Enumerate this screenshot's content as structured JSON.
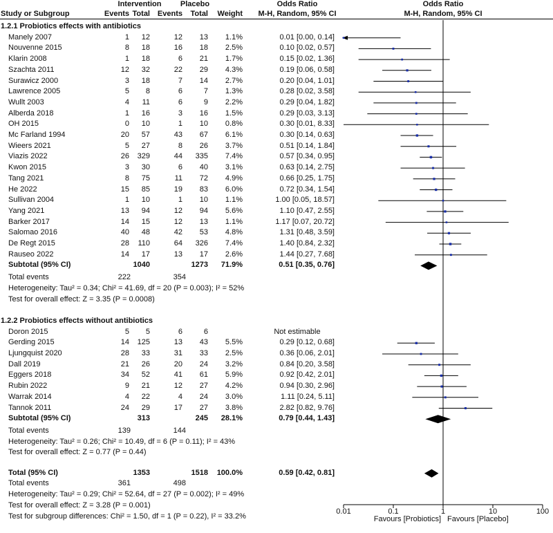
{
  "header": {
    "intervention": "Intervention",
    "placebo": "Placebo",
    "odds_ratio": "Odds Ratio",
    "odds_ratio_right": "Odds Ratio",
    "study": "Study or Subgroup",
    "events_i": "Events",
    "total_i": "Total",
    "events_p": "Events",
    "total_p": "Total",
    "weight": "Weight",
    "method": "M-H, Random, 95% CI",
    "method_right": "M-H, Random, 95% CI"
  },
  "groups": [
    {
      "title": "1.2.1 Probiotics effects with antibiotics",
      "studies": [
        {
          "name": "Manely 2007",
          "ei": "1",
          "ti": "12",
          "ep": "12",
          "tp": "13",
          "w": "1.1%",
          "ci": "0.01 [0.00, 0.14]"
        },
        {
          "name": "Nouvenne 2015",
          "ei": "8",
          "ti": "18",
          "ep": "16",
          "tp": "18",
          "w": "2.5%",
          "ci": "0.10 [0.02, 0.57]"
        },
        {
          "name": "Klarin 2008",
          "ei": "1",
          "ti": "18",
          "ep": "6",
          "tp": "21",
          "w": "1.7%",
          "ci": "0.15 [0.02, 1.36]"
        },
        {
          "name": "Szachta 2011",
          "ei": "12",
          "ti": "32",
          "ep": "22",
          "tp": "29",
          "w": "4.3%",
          "ci": "0.19 [0.06, 0.58]"
        },
        {
          "name": "Surawicz 2000",
          "ei": "3",
          "ti": "18",
          "ep": "7",
          "tp": "14",
          "w": "2.7%",
          "ci": "0.20 [0.04, 1.01]"
        },
        {
          "name": "Lawrence 2005",
          "ei": "5",
          "ti": "8",
          "ep": "6",
          "tp": "7",
          "w": "1.3%",
          "ci": "0.28 [0.02, 3.58]"
        },
        {
          "name": "Wullt 2003",
          "ei": "4",
          "ti": "11",
          "ep": "6",
          "tp": "9",
          "w": "2.2%",
          "ci": "0.29 [0.04, 1.82]"
        },
        {
          "name": "Alberda 2018",
          "ei": "1",
          "ti": "16",
          "ep": "3",
          "tp": "16",
          "w": "1.5%",
          "ci": "0.29 [0.03, 3.13]"
        },
        {
          "name": "OH 2015",
          "ei": "0",
          "ti": "10",
          "ep": "1",
          "tp": "10",
          "w": "0.8%",
          "ci": "0.30 [0.01, 8.33]"
        },
        {
          "name": "Mc Farland 1994",
          "ei": "20",
          "ti": "57",
          "ep": "43",
          "tp": "67",
          "w": "6.1%",
          "ci": "0.30 [0.14, 0.63]"
        },
        {
          "name": "Wieers 2021",
          "ei": "5",
          "ti": "27",
          "ep": "8",
          "tp": "26",
          "w": "3.7%",
          "ci": "0.51 [0.14, 1.84]"
        },
        {
          "name": "Viazis 2022",
          "ei": "26",
          "ti": "329",
          "ep": "44",
          "tp": "335",
          "w": "7.4%",
          "ci": "0.57 [0.34, 0.95]"
        },
        {
          "name": "Kwon 2015",
          "ei": "3",
          "ti": "30",
          "ep": "6",
          "tp": "40",
          "w": "3.1%",
          "ci": "0.63 [0.14, 2.75]"
        },
        {
          "name": "Tang 2021",
          "ei": "8",
          "ti": "75",
          "ep": "11",
          "tp": "72",
          "w": "4.9%",
          "ci": "0.66 [0.25, 1.75]"
        },
        {
          "name": "He 2022",
          "ei": "15",
          "ti": "85",
          "ep": "19",
          "tp": "83",
          "w": "6.0%",
          "ci": "0.72 [0.34, 1.54]"
        },
        {
          "name": "Sullivan 2004",
          "ei": "1",
          "ti": "10",
          "ep": "1",
          "tp": "10",
          "w": "1.1%",
          "ci": "1.00 [0.05, 18.57]"
        },
        {
          "name": "Yang 2021",
          "ei": "13",
          "ti": "94",
          "ep": "12",
          "tp": "94",
          "w": "5.6%",
          "ci": "1.10 [0.47, 2.55]"
        },
        {
          "name": "Barker 2017",
          "ei": "14",
          "ti": "15",
          "ep": "12",
          "tp": "13",
          "w": "1.1%",
          "ci": "1.17 [0.07, 20.72]"
        },
        {
          "name": "Salomao 2016",
          "ei": "40",
          "ti": "48",
          "ep": "42",
          "tp": "53",
          "w": "4.8%",
          "ci": "1.31 [0.48, 3.59]"
        },
        {
          "name": "De Regt 2015",
          "ei": "28",
          "ti": "110",
          "ep": "64",
          "tp": "326",
          "w": "7.4%",
          "ci": "1.40 [0.84, 2.32]"
        },
        {
          "name": "Rauseo 2022",
          "ei": "14",
          "ti": "17",
          "ep": "13",
          "tp": "17",
          "w": "2.6%",
          "ci": "1.44 [0.27, 7.68]"
        }
      ],
      "subtotal": {
        "label": "Subtotal (95% CI)",
        "ti": "1040",
        "tp": "1273",
        "w": "71.9%",
        "ci": "0.51 [0.35, 0.76]"
      },
      "events": {
        "label": "Total events",
        "ei": "222",
        "ep": "354"
      },
      "heterogeneity": "Heterogeneity: Tau² = 0.34; Chi² = 41.69, df = 20 (P = 0.003); I² = 52%",
      "overall": "Test for overall effect: Z = 3.35 (P = 0.0008)"
    },
    {
      "title": "1.2.2 Probiotics effects without antibiotics",
      "studies": [
        {
          "name": "Doron 2015",
          "ei": "5",
          "ti": "5",
          "ep": "6",
          "tp": "6",
          "w": "",
          "ci": "Not estimable"
        },
        {
          "name": "Gerding 2015",
          "ei": "14",
          "ti": "125",
          "ep": "13",
          "tp": "43",
          "w": "5.5%",
          "ci": "0.29 [0.12, 0.68]"
        },
        {
          "name": "Ljungquist 2020",
          "ei": "28",
          "ti": "33",
          "ep": "31",
          "tp": "33",
          "w": "2.5%",
          "ci": "0.36 [0.06, 2.01]"
        },
        {
          "name": "Dall 2019",
          "ei": "21",
          "ti": "26",
          "ep": "20",
          "tp": "24",
          "w": "3.2%",
          "ci": "0.84 [0.20, 3.58]"
        },
        {
          "name": "Eggers 2018",
          "ei": "34",
          "ti": "52",
          "ep": "41",
          "tp": "61",
          "w": "5.9%",
          "ci": "0.92 [0.42, 2.01]"
        },
        {
          "name": "Rubin 2022",
          "ei": "9",
          "ti": "21",
          "ep": "12",
          "tp": "27",
          "w": "4.2%",
          "ci": "0.94 [0.30, 2.96]"
        },
        {
          "name": "Warrak 2014",
          "ei": "4",
          "ti": "22",
          "ep": "4",
          "tp": "24",
          "w": "3.0%",
          "ci": "1.11 [0.24, 5.11]"
        },
        {
          "name": "Tannok 2011",
          "ei": "24",
          "ti": "29",
          "ep": "17",
          "tp": "27",
          "w": "3.8%",
          "ci": "2.82 [0.82, 9.76]"
        }
      ],
      "subtotal": {
        "label": "Subtotal (95% CI)",
        "ti": "313",
        "tp": "245",
        "w": "28.1%",
        "ci": "0.79 [0.44, 1.43]"
      },
      "events": {
        "label": "Total events",
        "ei": "139",
        "ep": "144"
      },
      "heterogeneity": "Heterogeneity: Tau² = 0.26; Chi² = 10.49, df = 6 (P = 0.11); I² = 43%",
      "overall": "Test for overall effect: Z = 0.77 (P = 0.44)"
    }
  ],
  "total": {
    "label": "Total (95% CI)",
    "ti": "1353",
    "tp": "1518",
    "w": "100.0%",
    "ci": "0.59 [0.42, 0.81]"
  },
  "total_events": {
    "label": "Total events",
    "ei": "361",
    "ep": "498"
  },
  "total_heterogeneity": "Heterogeneity: Tau² = 0.29; Chi² = 52.64, df = 27 (P = 0.002); I² = 49%",
  "total_overall": "Test for overall effect: Z = 3.28 (P = 0.001)",
  "subgroup_test": "Test for subgroup differences: Chi² = 1.50, df = 1 (P = 0.22), I² = 33.2%",
  "chart_data": {
    "type": "forest",
    "title": "Odds Ratio M-H, Random, 95% CI",
    "x_scale": "log",
    "xlim": [
      0.01,
      100
    ],
    "ticks": [
      "0.01",
      "0.1",
      "1",
      "10",
      "100"
    ],
    "favours_left": "Favours [Probiotics]",
    "favours_right": "Favours [Placebo]",
    "series": [
      {
        "name": "1.2.1 Probiotics effects with antibiotics",
        "points": [
          {
            "study": "Manely 2007",
            "or": 0.01,
            "lo": 0.0,
            "hi": 0.14,
            "weight": 1.1
          },
          {
            "study": "Nouvenne 2015",
            "or": 0.1,
            "lo": 0.02,
            "hi": 0.57,
            "weight": 2.5
          },
          {
            "study": "Klarin 2008",
            "or": 0.15,
            "lo": 0.02,
            "hi": 1.36,
            "weight": 1.7
          },
          {
            "study": "Szachta 2011",
            "or": 0.19,
            "lo": 0.06,
            "hi": 0.58,
            "weight": 4.3
          },
          {
            "study": "Surawicz 2000",
            "or": 0.2,
            "lo": 0.04,
            "hi": 1.01,
            "weight": 2.7
          },
          {
            "study": "Lawrence 2005",
            "or": 0.28,
            "lo": 0.02,
            "hi": 3.58,
            "weight": 1.3
          },
          {
            "study": "Wullt 2003",
            "or": 0.29,
            "lo": 0.04,
            "hi": 1.82,
            "weight": 2.2
          },
          {
            "study": "Alberda 2018",
            "or": 0.29,
            "lo": 0.03,
            "hi": 3.13,
            "weight": 1.5
          },
          {
            "study": "OH 2015",
            "or": 0.3,
            "lo": 0.01,
            "hi": 8.33,
            "weight": 0.8
          },
          {
            "study": "Mc Farland 1994",
            "or": 0.3,
            "lo": 0.14,
            "hi": 0.63,
            "weight": 6.1
          },
          {
            "study": "Wieers 2021",
            "or": 0.51,
            "lo": 0.14,
            "hi": 1.84,
            "weight": 3.7
          },
          {
            "study": "Viazis 2022",
            "or": 0.57,
            "lo": 0.34,
            "hi": 0.95,
            "weight": 7.4
          },
          {
            "study": "Kwon 2015",
            "or": 0.63,
            "lo": 0.14,
            "hi": 2.75,
            "weight": 3.1
          },
          {
            "study": "Tang 2021",
            "or": 0.66,
            "lo": 0.25,
            "hi": 1.75,
            "weight": 4.9
          },
          {
            "study": "He 2022",
            "or": 0.72,
            "lo": 0.34,
            "hi": 1.54,
            "weight": 6.0
          },
          {
            "study": "Sullivan 2004",
            "or": 1.0,
            "lo": 0.05,
            "hi": 18.57,
            "weight": 1.1
          },
          {
            "study": "Yang 2021",
            "or": 1.1,
            "lo": 0.47,
            "hi": 2.55,
            "weight": 5.6
          },
          {
            "study": "Barker 2017",
            "or": 1.17,
            "lo": 0.07,
            "hi": 20.72,
            "weight": 1.1
          },
          {
            "study": "Salomao 2016",
            "or": 1.31,
            "lo": 0.48,
            "hi": 3.59,
            "weight": 4.8
          },
          {
            "study": "De Regt 2015",
            "or": 1.4,
            "lo": 0.84,
            "hi": 2.32,
            "weight": 7.4
          },
          {
            "study": "Rauseo 2022",
            "or": 1.44,
            "lo": 0.27,
            "hi": 7.68,
            "weight": 2.6
          }
        ],
        "subtotal": {
          "or": 0.51,
          "lo": 0.35,
          "hi": 0.76
        }
      },
      {
        "name": "1.2.2 Probiotics effects without antibiotics",
        "points": [
          {
            "study": "Doron 2015",
            "or": null,
            "lo": null,
            "hi": null,
            "weight": null
          },
          {
            "study": "Gerding 2015",
            "or": 0.29,
            "lo": 0.12,
            "hi": 0.68,
            "weight": 5.5
          },
          {
            "study": "Ljungquist 2020",
            "or": 0.36,
            "lo": 0.06,
            "hi": 2.01,
            "weight": 2.5
          },
          {
            "study": "Dall 2019",
            "or": 0.84,
            "lo": 0.2,
            "hi": 3.58,
            "weight": 3.2
          },
          {
            "study": "Eggers 2018",
            "or": 0.92,
            "lo": 0.42,
            "hi": 2.01,
            "weight": 5.9
          },
          {
            "study": "Rubin 2022",
            "or": 0.94,
            "lo": 0.3,
            "hi": 2.96,
            "weight": 4.2
          },
          {
            "study": "Warrak 2014",
            "or": 1.11,
            "lo": 0.24,
            "hi": 5.11,
            "weight": 3.0
          },
          {
            "study": "Tannok 2011",
            "or": 2.82,
            "lo": 0.82,
            "hi": 9.76,
            "weight": 3.8
          }
        ],
        "subtotal": {
          "or": 0.79,
          "lo": 0.44,
          "hi": 1.43
        }
      }
    ],
    "total": {
      "or": 0.59,
      "lo": 0.42,
      "hi": 0.81
    },
    "colors": {
      "point": "#1a2fa8",
      "line": "#000000",
      "diamond": "#000000"
    }
  }
}
